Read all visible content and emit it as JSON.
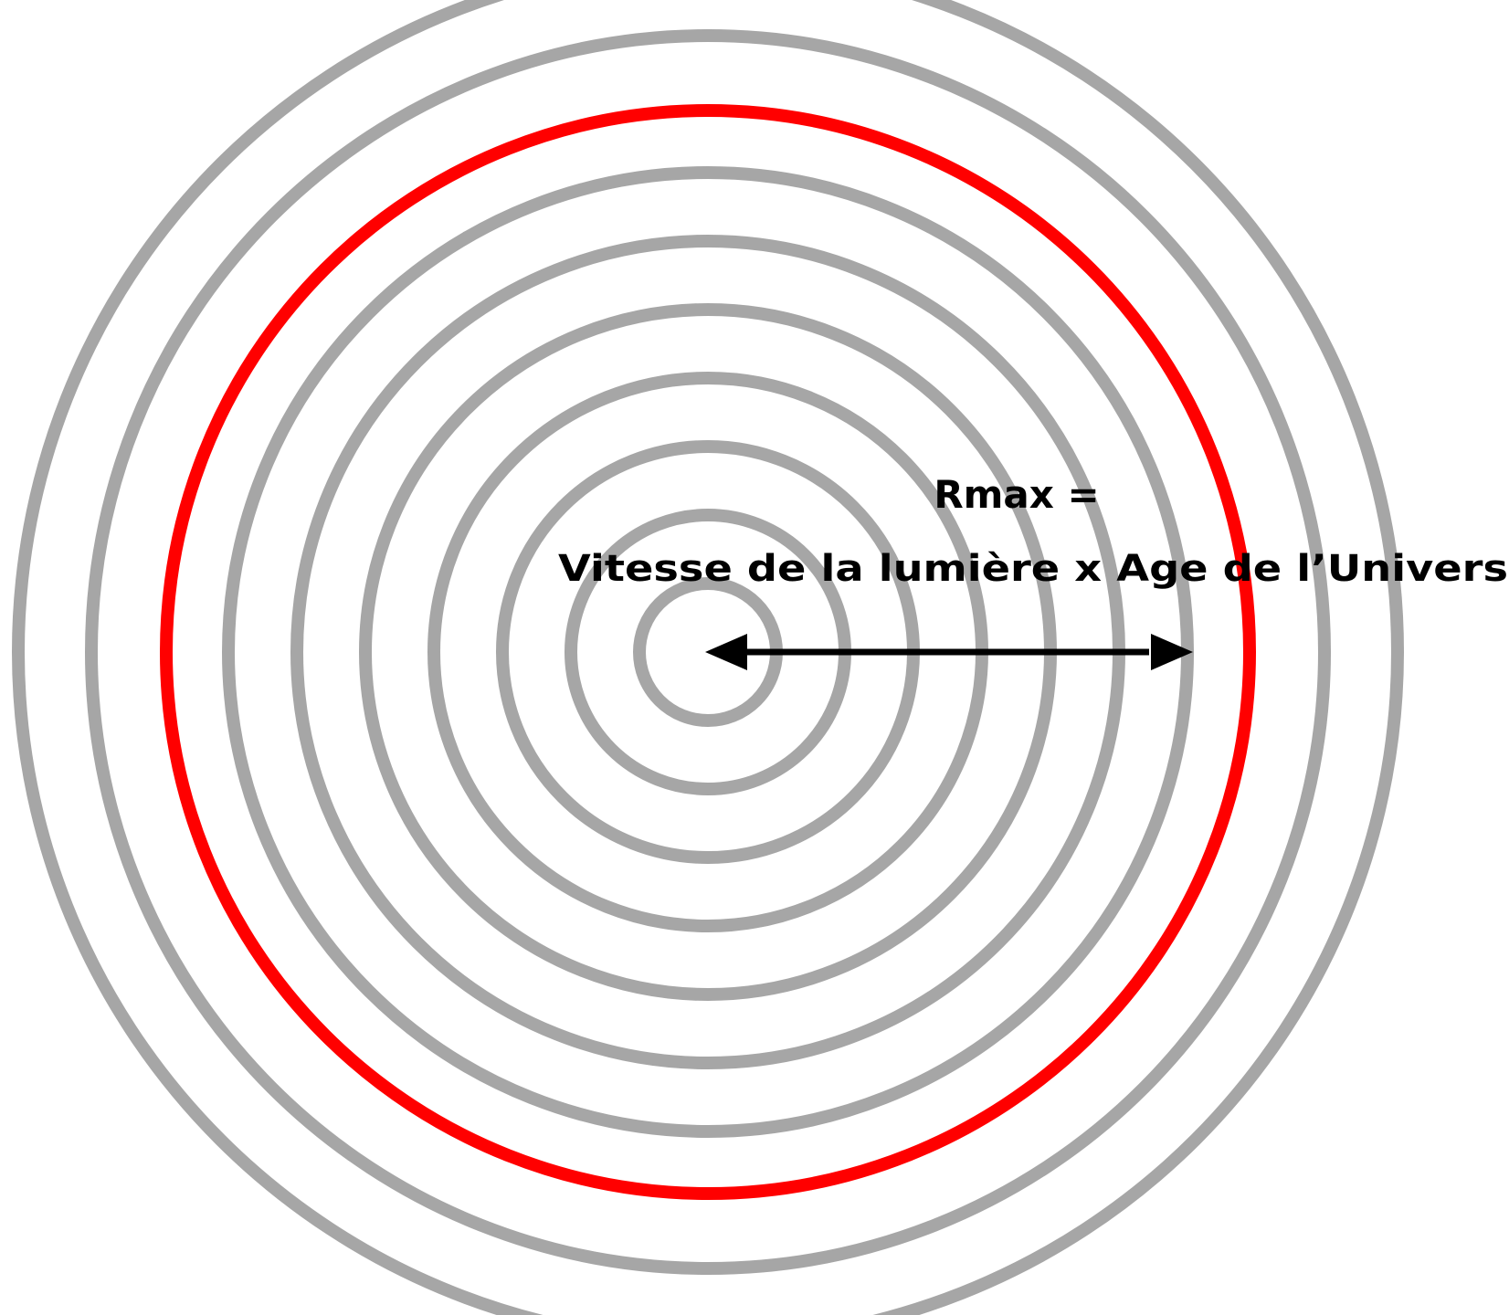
{
  "diagram": {
    "formula_line1": "Rmax =",
    "formula_line2": "Vitesse de la lumière x Age de l’Univers",
    "colors": {
      "background": "#ffffff",
      "ring": "#a6a6a6",
      "highlight_ring": "#ff0000",
      "arrow": "#000000",
      "text": "#000000"
    },
    "ring_count": 10,
    "highlighted_ring_index": 7
  }
}
